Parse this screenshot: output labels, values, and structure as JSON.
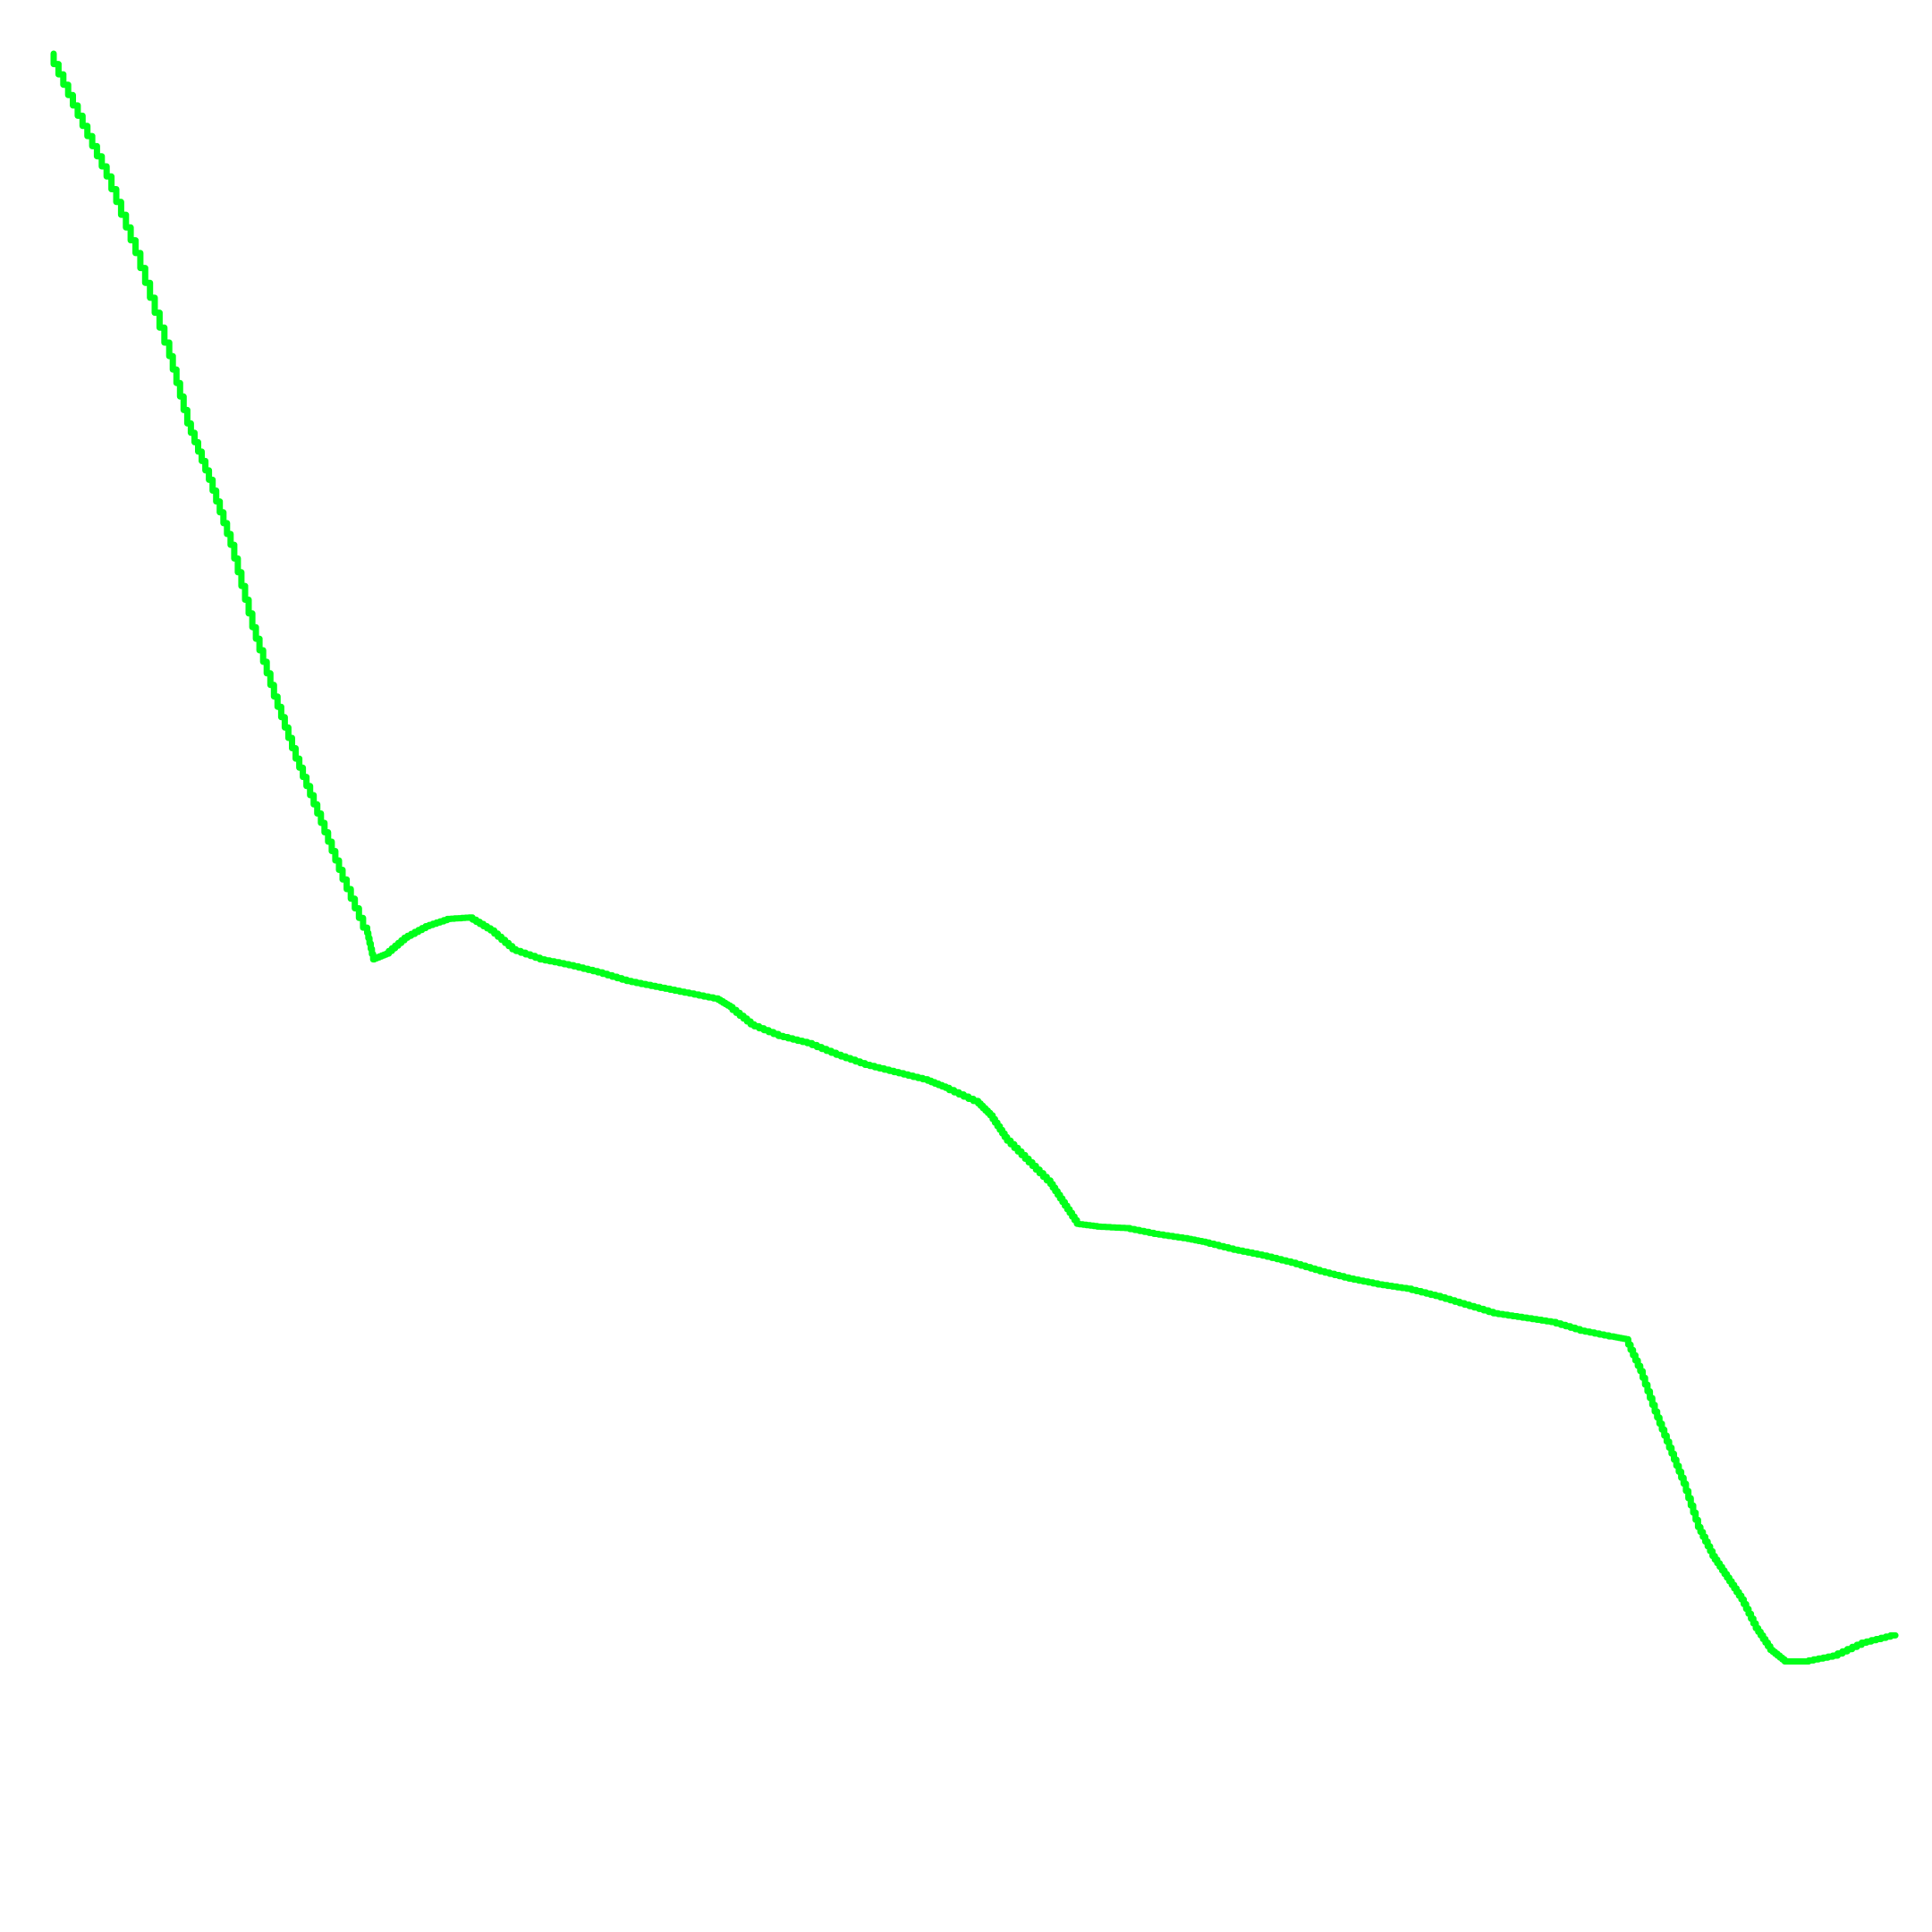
{
  "chart_data": {
    "type": "line",
    "title": "",
    "xlabel": "",
    "ylabel": "",
    "grid": false,
    "axes_visible": false,
    "line_style": "stepped",
    "series": [
      {
        "color": "#00ff1a",
        "points": [
          [
            0,
            0
          ],
          [
            0.02,
            0.043
          ],
          [
            0.04,
            0.085
          ],
          [
            0.06,
            0.138
          ],
          [
            0.08,
            0.2
          ],
          [
            0.095,
            0.256
          ],
          [
            0.11,
            0.295
          ],
          [
            0.125,
            0.34
          ],
          [
            0.14,
            0.397
          ],
          [
            0.155,
            0.445
          ],
          [
            0.17,
            0.488
          ],
          [
            0.185,
            0.526
          ],
          [
            0.2,
            0.565
          ],
          [
            0.217,
            0.605
          ],
          [
            0.222,
            0.627
          ],
          [
            0.232,
            0.623
          ],
          [
            0.245,
            0.612
          ],
          [
            0.26,
            0.604
          ],
          [
            0.275,
            0.599
          ],
          [
            0.29,
            0.598
          ],
          [
            0.305,
            0.607
          ],
          [
            0.32,
            0.62
          ],
          [
            0.34,
            0.627
          ],
          [
            0.36,
            0.631
          ],
          [
            0.38,
            0.636
          ],
          [
            0.4,
            0.642
          ],
          [
            0.42,
            0.646
          ],
          [
            0.44,
            0.65
          ],
          [
            0.46,
            0.654
          ],
          [
            0.47,
            0.66
          ],
          [
            0.485,
            0.672
          ],
          [
            0.505,
            0.68
          ],
          [
            0.525,
            0.685
          ],
          [
            0.545,
            0.693
          ],
          [
            0.565,
            0.7
          ],
          [
            0.585,
            0.705
          ],
          [
            0.605,
            0.71
          ],
          [
            0.62,
            0.716
          ],
          [
            0.64,
            0.725
          ],
          [
            0.65,
            0.735
          ],
          [
            0.66,
            0.75
          ],
          [
            0.675,
            0.765
          ],
          [
            0.69,
            0.78
          ],
          [
            0.7,
            0.795
          ],
          [
            0.71,
            0.81
          ],
          [
            0.725,
            0.812
          ],
          [
            0.745,
            0.813
          ],
          [
            0.765,
            0.817
          ],
          [
            0.785,
            0.82
          ],
          [
            0.8,
            0.823
          ],
          [
            0.82,
            0.828
          ],
          [
            0.84,
            0.832
          ],
          [
            0.86,
            0.837
          ],
          [
            0.88,
            0.843
          ],
          [
            0.9,
            0.848
          ],
          [
            0.92,
            0.852
          ],
          [
            0.94,
            0.855
          ],
          [
            0.96,
            0.86
          ],
          [
            0.98,
            0.866
          ],
          [
            1.0,
            0.872
          ],
          [
            1.02,
            0.875
          ],
          [
            1.04,
            0.878
          ],
          [
            1.06,
            0.884
          ],
          [
            1.08,
            0.888
          ],
          [
            1.09,
            0.89
          ],
          [
            1.1,
            0.912
          ],
          [
            1.11,
            0.94
          ],
          [
            1.12,
            0.965
          ],
          [
            1.13,
            0.99
          ],
          [
            1.14,
            1.02
          ],
          [
            1.15,
            1.04
          ],
          [
            1.16,
            1.055
          ],
          [
            1.17,
            1.07
          ],
          [
            1.18,
            1.09
          ],
          [
            1.19,
            1.105
          ],
          [
            1.2,
            1.113
          ],
          [
            1.215,
            1.113
          ],
          [
            1.235,
            1.109
          ],
          [
            1.255,
            1.1
          ],
          [
            1.275,
            1.095
          ]
        ]
      }
    ]
  }
}
